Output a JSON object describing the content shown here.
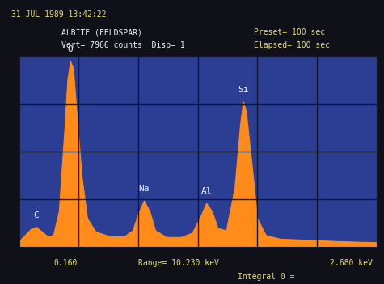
{
  "chart_data": {
    "type": "area",
    "title": "ALBITE (FELDSPAR)",
    "date": "31-JUL-1989 13:42:22",
    "vertical": "Vert= 7966 counts  Disp= 1",
    "preset": "Preset= 100 sec",
    "elapsed": "Elapsed= 100 sec",
    "x_start_label": "0.160",
    "range_label": "Range= 10.230 keV",
    "x_end_label": "2.680 keV",
    "integral_label": "Integral 0 =",
    "x": [
      0.16,
      0.2,
      0.24,
      0.28,
      0.32,
      0.36,
      0.4,
      0.44,
      0.48,
      0.5,
      0.52,
      0.54,
      0.56,
      0.6,
      0.64,
      0.7,
      0.8,
      0.9,
      0.96,
      1.0,
      1.04,
      1.08,
      1.12,
      1.2,
      1.3,
      1.38,
      1.44,
      1.48,
      1.52,
      1.56,
      1.62,
      1.68,
      1.72,
      1.74,
      1.76,
      1.8,
      1.84,
      1.9,
      2.0,
      2.2,
      2.4,
      2.68
    ],
    "values": [
      250,
      500,
      750,
      850,
      650,
      450,
      500,
      1500,
      5000,
      7000,
      7800,
      7500,
      6000,
      3000,
      1200,
      650,
      450,
      450,
      700,
      1400,
      1950,
      1500,
      700,
      420,
      420,
      600,
      1300,
      1850,
      1500,
      800,
      700,
      2500,
      5200,
      6100,
      5700,
      3500,
      1200,
      500,
      350,
      300,
      250,
      200
    ],
    "color": "#ff8c1a",
    "annotations": [
      {
        "text": "C",
        "x": 0.28
      },
      {
        "text": "O",
        "x": 0.52
      },
      {
        "text": "Na",
        "x": 1.04
      },
      {
        "text": "Al",
        "x": 1.48
      },
      {
        "text": "Si",
        "x": 1.74
      }
    ],
    "xlim": [
      0.16,
      2.68
    ],
    "ylim": [
      0,
      7966
    ],
    "xticks": [
      0.58,
      1.0,
      1.42,
      1.84,
      2.26
    ],
    "yticks": [
      1991.5,
      3983,
      5974.5
    ],
    "grid": true,
    "tick_labels": false
  }
}
